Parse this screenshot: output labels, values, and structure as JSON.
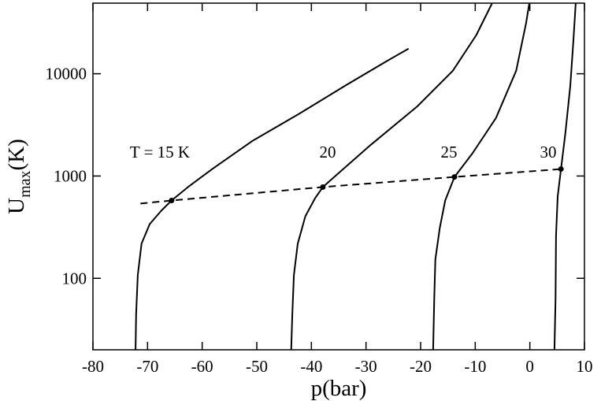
{
  "chart_data": {
    "type": "line",
    "xlabel": "p(bar)",
    "ylabel": [
      "U",
      "max",
      "(K)"
    ],
    "xlim": [
      -80,
      10
    ],
    "xticks": [
      -80,
      -70,
      -60,
      -50,
      -40,
      -30,
      -20,
      -10,
      0,
      10
    ],
    "ylim": [
      20,
      49000
    ],
    "yticks": [
      100,
      1000,
      10000
    ],
    "log_y": true,
    "series": [
      {
        "color": "#000000",
        "style": "solid",
        "x": [
          -72.2,
          -72.1,
          -71.8,
          -71.1,
          -69.6,
          -67.5,
          -65.6,
          -62.4,
          -58.1,
          -50.9,
          -42.2,
          -33.6,
          -26.3,
          -22.2
        ],
        "y": [
          20,
          44,
          107,
          218,
          339,
          458,
          576,
          794,
          1175,
          2188,
          4074,
          7762,
          13200,
          17600
        ]
      },
      {
        "color": "#000000",
        "style": "solid",
        "x": [
          -43.7,
          -43.5,
          -43.2,
          -42.5,
          -41.1,
          -39.3,
          -37.9,
          -35.0,
          -29.2,
          -20.6,
          -14.1,
          -9.8,
          -6.9
        ],
        "y": [
          20,
          44,
          107,
          218,
          405,
          610,
          780,
          1070,
          2000,
          4800,
          10700,
          23900,
          49000
        ]
      },
      {
        "color": "#000000",
        "style": "solid",
        "x": [
          -17.7,
          -17.5,
          -17.3,
          -16.5,
          -15.5,
          -13.8,
          -10.5,
          -6.2,
          -2.5,
          -0.7,
          -0.1
        ],
        "y": [
          20,
          63,
          153,
          310,
          576,
          980,
          1670,
          3700,
          10700,
          31000,
          49000
        ]
      },
      {
        "color": "#000000",
        "style": "solid",
        "x": [
          4.5,
          4.7,
          4.8,
          5.1,
          5.7,
          6.5,
          7.4,
          8.0,
          8.4
        ],
        "y": [
          20,
          63,
          260,
          630,
          1170,
          2600,
          7600,
          21900,
          49000
        ]
      },
      {
        "color": "#000000",
        "style": "dashed",
        "x": [
          -71.3,
          -65.6,
          -37.9,
          -13.8,
          5.7
        ],
        "y": [
          538,
          576,
          780,
          980,
          1170
        ]
      },
      {
        "color": "#000000",
        "style": "markers",
        "x": [
          -65.6,
          -37.9,
          -13.8,
          5.7
        ],
        "y": [
          576,
          780,
          980,
          1170
        ]
      }
    ],
    "annotations": [
      "T = 15 K",
      "20",
      "25",
      "30"
    ]
  }
}
